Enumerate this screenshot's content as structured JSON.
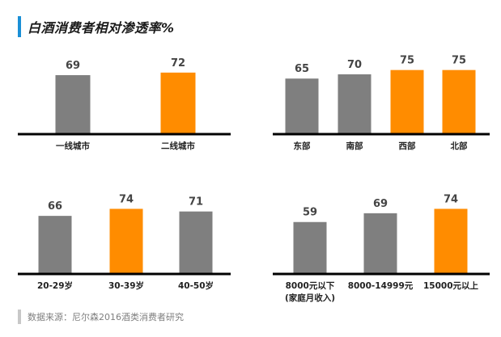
{
  "header": {
    "title": "白酒消费者相对渗透率%"
  },
  "footer": {
    "source": "数据来源：尼尔森2016酒类消费者研究"
  },
  "colors": {
    "gray": "#7f7f7f",
    "orange": "#ff8c00",
    "accent": "#1a8fd6",
    "axis": "#000000"
  },
  "chart_data": [
    {
      "type": "bar",
      "categories": [
        "一线城市",
        "二线城市"
      ],
      "values": [
        69,
        72
      ],
      "highlight": [
        false,
        true
      ],
      "ylim": [
        0,
        100
      ]
    },
    {
      "type": "bar",
      "categories": [
        "东部",
        "南部",
        "西部",
        "北部"
      ],
      "values": [
        65,
        70,
        75,
        75
      ],
      "highlight": [
        false,
        false,
        true,
        true
      ],
      "ylim": [
        0,
        100
      ]
    },
    {
      "type": "bar",
      "categories": [
        "20-29岁",
        "30-39岁",
        "40-50岁"
      ],
      "values": [
        66,
        74,
        71
      ],
      "highlight": [
        false,
        true,
        false
      ],
      "ylim": [
        0,
        100
      ]
    },
    {
      "type": "bar",
      "categories": [
        "8000元以下\n(家庭月收入)",
        "8000-14999元",
        "15000元以上"
      ],
      "values": [
        59,
        69,
        74
      ],
      "highlight": [
        false,
        false,
        true
      ],
      "ylim": [
        0,
        100
      ]
    }
  ]
}
